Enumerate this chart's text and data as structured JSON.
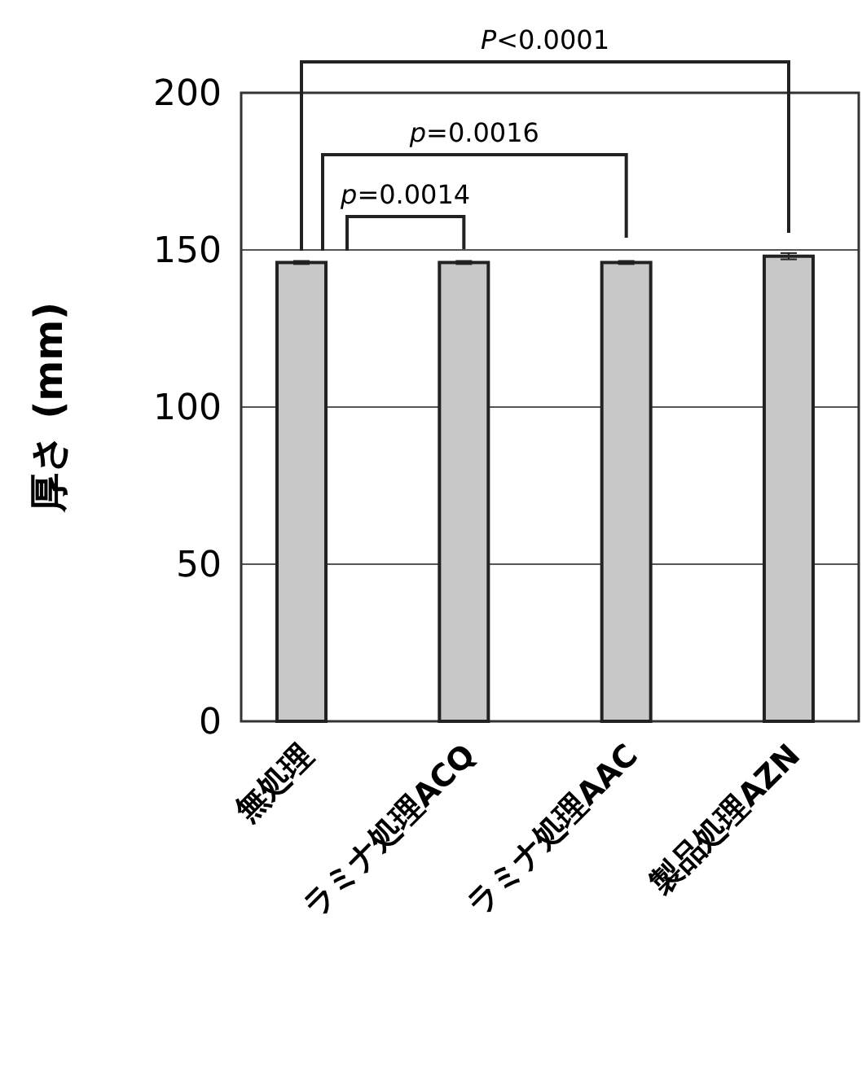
{
  "chart_data": {
    "type": "bar",
    "ylabel": "厚さ (mm)",
    "categories": [
      "無処理",
      "ラミナ処理ACQ",
      "ラミナ処理AAC",
      "製品処理AZN"
    ],
    "values": [
      146,
      146,
      146,
      148
    ],
    "errors": [
      0.5,
      0.5,
      0.5,
      1
    ],
    "color": "#c8c8c8",
    "ylim": [
      0,
      200
    ],
    "yticks": [
      0,
      50,
      100,
      150,
      200
    ],
    "grid": "y",
    "annotations": [
      "P<0.0001",
      "p=0.0016",
      "p=0.0014"
    ]
  }
}
